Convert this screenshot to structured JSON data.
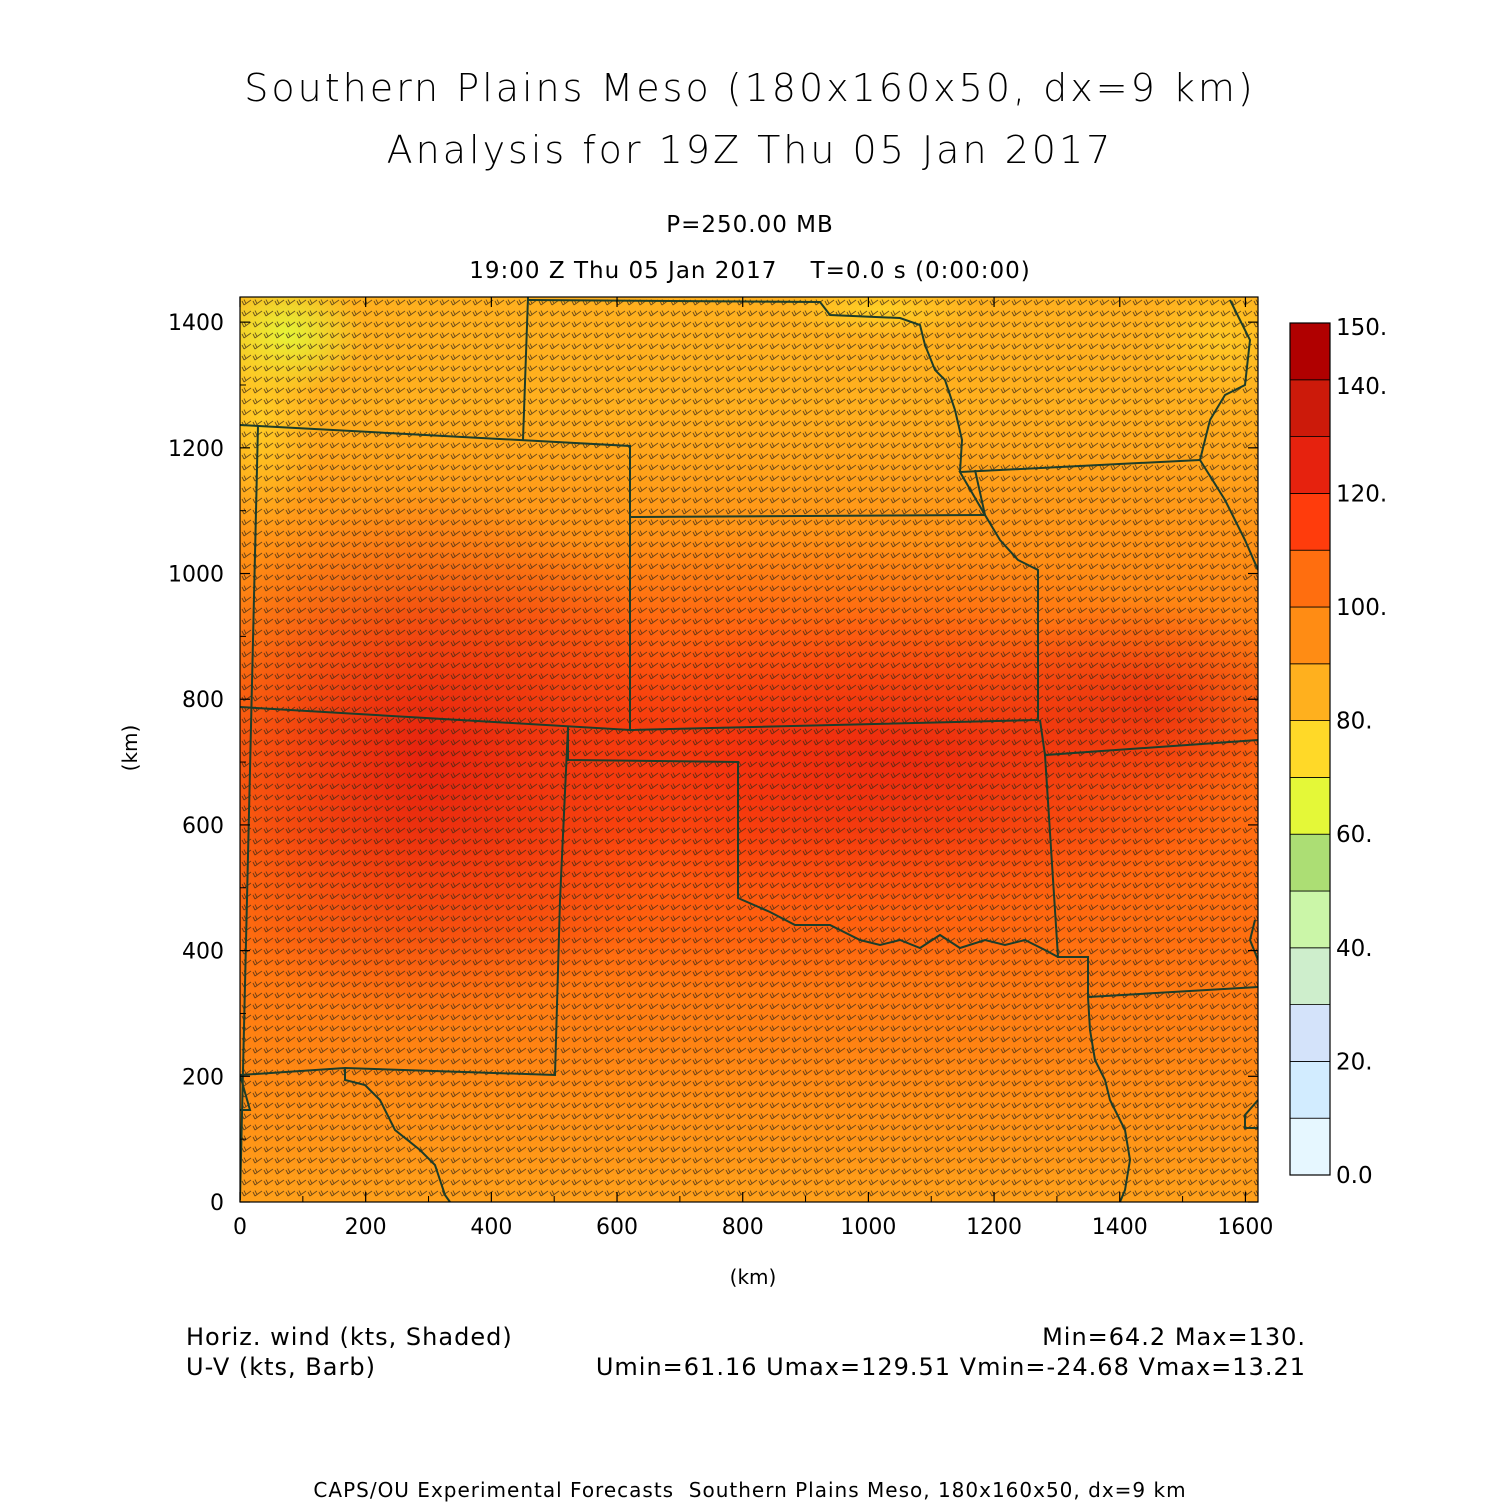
{
  "header": {
    "title_line1": "Southern Plains Meso (180x160x50, dx=9 km)",
    "title_line2": "Analysis for 19Z Thu 05 Jan 2017",
    "level": "P=250.00 MB",
    "time_line": "19:00 Z Thu 05 Jan 2017    T=0.0 s (0:00:00)"
  },
  "chart_data": {
    "type": "heatmap",
    "xlabel": "(km)",
    "ylabel": "(km)",
    "xlim": [
      0,
      1620
    ],
    "ylim": [
      0,
      1440
    ],
    "x_ticks": [
      "0",
      "200",
      "400",
      "600",
      "800",
      "1000",
      "1200",
      "1400",
      "1600"
    ],
    "y_ticks": [
      "0",
      "200",
      "400",
      "600",
      "800",
      "1000",
      "1200",
      "1400"
    ],
    "shaded_field": "Horiz. wind (kts, Shaded)",
    "barb_field": "U-V (kts, Barb)",
    "colorbar": {
      "labels": [
        "0.0",
        "20.",
        "40.",
        "60.",
        "80.",
        "100.",
        "120.",
        "140.",
        "150."
      ],
      "levels": [
        0,
        10,
        20,
        30,
        40,
        50,
        60,
        70,
        80,
        90,
        100,
        110,
        120,
        130,
        140,
        150
      ],
      "colors": [
        "#e6f7ff",
        "#d2ecff",
        "#d4e3fa",
        "#ceeecc",
        "#cbf6a8",
        "#acde74",
        "#e4f838",
        "#ffd928",
        "#ffb01e",
        "#ff8c14",
        "#ff6e0f",
        "#ff3c0c",
        "#e6220e",
        "#cc1a0a",
        "#b00000"
      ]
    },
    "stats": {
      "min_max": "Min=64.2 Max=130.",
      "uv_range": "Umin=61.16 Umax=129.51 Vmin=-24.68 Vmax=13.21"
    }
  },
  "credit": "CAPS/OU Experimental Forecasts  Southern Plains Meso, 180x160x50, dx=9 km"
}
